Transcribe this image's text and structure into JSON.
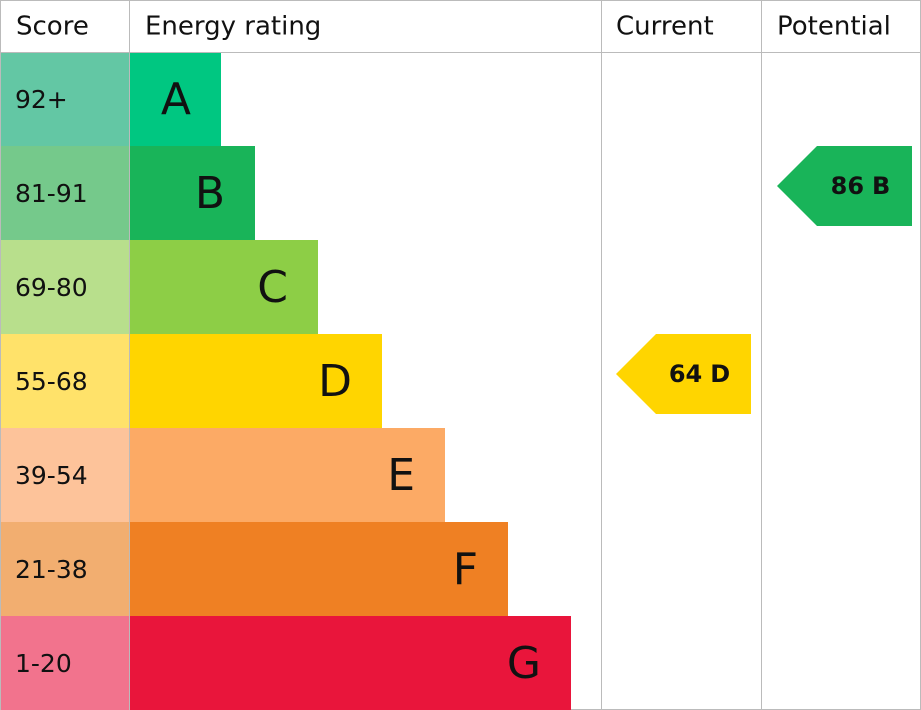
{
  "headers": [
    "Score",
    "Energy rating",
    "Current",
    "Potential"
  ],
  "bands": [
    {
      "score": "92+",
      "letter": "A",
      "score_color": "#63c7a4",
      "color": "#00c781"
    },
    {
      "score": "81-91",
      "letter": "B",
      "score_color": "#75c98b",
      "color": "#19b459"
    },
    {
      "score": "69-80",
      "letter": "C",
      "score_color": "#b8df8c",
      "color": "#8dce46"
    },
    {
      "score": "55-68",
      "letter": "D",
      "score_color": "#ffe26a",
      "color": "#ffd500"
    },
    {
      "score": "39-54",
      "letter": "E",
      "score_color": "#fdc39a",
      "color": "#fcaa65"
    },
    {
      "score": "21-38",
      "letter": "F",
      "score_color": "#f2ae70",
      "color": "#ef8023"
    },
    {
      "score": "1-20",
      "letter": "G",
      "score_color": "#f2738d",
      "color": "#e9153b"
    }
  ],
  "current": {
    "score": 64,
    "rating": "D"
  },
  "potential": {
    "score": 86,
    "rating": "B"
  }
}
